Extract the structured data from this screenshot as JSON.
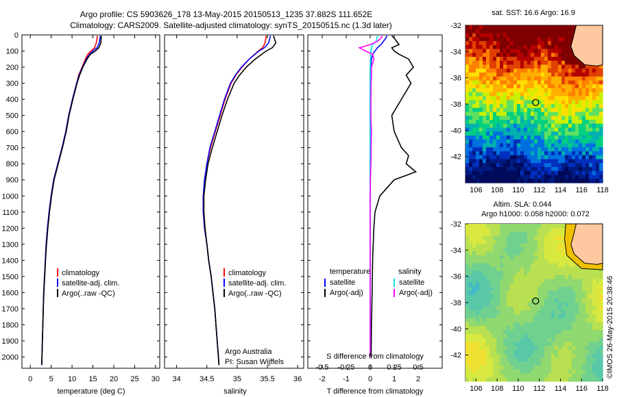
{
  "header": {
    "title_line1": "Argo profile: CS 5903626_178 13-May-2015 20150513_1235 37.882S 111.652E",
    "title_line2": "Climatology: CARS2009. Satellite-adjusted climatology: synTS_20150515.nc (1.3d later)"
  },
  "credits": {
    "group": "Argo Australia",
    "pi": "PI: Susan Wijffels",
    "imos": "©IMOS 26-May-2015 20:38:46"
  },
  "colors": {
    "climatology": "#ff0000",
    "satellite": "#0000ff",
    "argo": "#000000",
    "salinity_satellite": "#00e5e5",
    "salinity_argo": "#ff00ff"
  },
  "chart_data": [
    {
      "id": "temperature",
      "type": "line",
      "xlabel": "temperature (deg C)",
      "ylabel": "",
      "xlim": [
        -2,
        31
      ],
      "ylim": [
        2070,
        0
      ],
      "xticks": [
        0,
        5,
        10,
        15,
        20,
        25,
        30
      ],
      "yticks": [
        0,
        100,
        200,
        300,
        400,
        500,
        600,
        700,
        800,
        900,
        1000,
        1100,
        1200,
        1300,
        1400,
        1500,
        1600,
        1700,
        1800,
        1900,
        2000
      ],
      "legend": [
        "climatology",
        "satellite-adj. clim.",
        "Argo(..raw -QC)"
      ],
      "depth": [
        5,
        50,
        80,
        100,
        120,
        150,
        200,
        250,
        300,
        400,
        500,
        600,
        700,
        800,
        900,
        1000,
        1100,
        1200,
        1300,
        1400,
        1500,
        1600,
        1700,
        1800,
        1900,
        2000,
        2050
      ],
      "series": [
        {
          "name": "climatology",
          "color": "#ff0000",
          "values": [
            16.1,
            15.8,
            15.4,
            14.5,
            13.8,
            13.2,
            12.4,
            11.6,
            11.1,
            10.1,
            9.2,
            8.5,
            7.6,
            6.6,
            5.6,
            5.0,
            4.5,
            4.1,
            3.8,
            3.6,
            3.4,
            3.2,
            3.1,
            3.0,
            2.9,
            2.8,
            2.75
          ]
        },
        {
          "name": "satellite-adj. clim.",
          "color": "#0000ff",
          "values": [
            16.8,
            16.5,
            16.0,
            15.0,
            14.2,
            13.4,
            12.5,
            11.7,
            11.1,
            10.1,
            9.2,
            8.5,
            7.6,
            6.6,
            5.6,
            5.0,
            4.5,
            4.1,
            3.8,
            3.6,
            3.4,
            3.2,
            3.1,
            3.0,
            2.9,
            2.8,
            2.75
          ]
        },
        {
          "name": "Argo(..raw -QC)",
          "color": "#000000",
          "values": [
            17.0,
            16.9,
            16.4,
            15.6,
            14.4,
            13.6,
            12.6,
            11.8,
            11.2,
            10.2,
            9.3,
            8.6,
            7.7,
            6.7,
            5.7,
            5.1,
            4.6,
            4.2,
            3.9,
            3.65,
            3.45,
            3.25,
            3.1,
            3.0,
            2.9,
            2.8,
            2.75
          ]
        }
      ]
    },
    {
      "id": "salinity",
      "type": "line",
      "xlabel": "salinity",
      "ylabel": "",
      "xlim": [
        33.8,
        36.1
      ],
      "ylim": [
        2070,
        0
      ],
      "xticks": [
        34,
        34.5,
        35,
        35.5,
        36
      ],
      "legend": [
        "climatology",
        "satellite-adj. clim.",
        "Argo(..raw -QC)"
      ],
      "depth": [
        5,
        50,
        80,
        100,
        150,
        200,
        250,
        300,
        400,
        500,
        600,
        700,
        800,
        900,
        1000,
        1100,
        1200,
        1300,
        1400,
        1500,
        1600,
        1700,
        1800,
        1900,
        2000,
        2050
      ],
      "series": [
        {
          "name": "climatology",
          "color": "#ff0000",
          "values": [
            35.48,
            35.46,
            35.42,
            35.35,
            35.2,
            35.08,
            34.98,
            34.9,
            34.8,
            34.72,
            34.64,
            34.56,
            34.5,
            34.46,
            34.44,
            34.44,
            34.46,
            34.5,
            34.53,
            34.57,
            34.6,
            34.63,
            34.65,
            34.67,
            34.69,
            34.7
          ]
        },
        {
          "name": "satellite-adj. clim.",
          "color": "#0000ff",
          "values": [
            35.55,
            35.52,
            35.45,
            35.36,
            35.2,
            35.07,
            34.97,
            34.89,
            34.79,
            34.71,
            34.63,
            34.55,
            34.5,
            34.46,
            34.44,
            34.44,
            34.46,
            34.5,
            34.53,
            34.57,
            34.6,
            34.63,
            34.65,
            34.67,
            34.69,
            34.7
          ]
        },
        {
          "name": "Argo(..raw -QC)",
          "color": "#000000",
          "values": [
            35.6,
            35.64,
            35.58,
            35.48,
            35.3,
            35.15,
            35.04,
            34.95,
            34.84,
            34.75,
            34.67,
            34.59,
            34.52,
            34.48,
            34.45,
            34.45,
            34.47,
            34.5,
            34.53,
            34.57,
            34.6,
            34.63,
            34.65,
            34.67,
            34.69,
            34.7
          ]
        }
      ]
    },
    {
      "id": "difference",
      "type": "line",
      "xlabel": "T difference from climatology",
      "xlabel2": "S difference from climatology",
      "xlim": [
        -2.6,
        3.0
      ],
      "ylim": [
        2070,
        0
      ],
      "xticks": [
        -2,
        -1,
        0,
        1,
        2
      ],
      "xticks2": [
        "-0.5",
        "-0.25",
        "0",
        "0.25",
        "0.5"
      ],
      "legend_left_title": "temperature",
      "legend_right_title": "salinity",
      "legend": [
        "satellite",
        "Argo(-adj)",
        "satellite",
        "Argo(-adj)"
      ],
      "depth": [
        5,
        20,
        40,
        60,
        80,
        100,
        120,
        150,
        200,
        250,
        300,
        400,
        500,
        600,
        700,
        750,
        800,
        850,
        900,
        1000,
        1100,
        1200,
        1400,
        1600,
        1800,
        2000
      ],
      "series": [
        {
          "name": "temperature satellite",
          "color": "#0000ff",
          "values": [
            0.7,
            0.65,
            0.55,
            0.45,
            0.3,
            0.2,
            0.1,
            0.05,
            0.02,
            0.0,
            0.0,
            0.0,
            0.0,
            0.0,
            0.0,
            0.0,
            0.0,
            0.0,
            0.0,
            0.0,
            0.0,
            0.0,
            0.0,
            0.0,
            0.0,
            0.0
          ]
        },
        {
          "name": "temperature Argo(-adj)",
          "color": "#000000",
          "values": [
            0.9,
            1.0,
            1.1,
            1.2,
            0.9,
            1.0,
            1.2,
            1.6,
            1.8,
            1.5,
            1.7,
            1.3,
            0.9,
            1.0,
            1.3,
            1.6,
            1.5,
            1.9,
            1.0,
            0.4,
            0.2,
            0.15,
            0.1,
            0.08,
            0.05,
            0.04
          ]
        },
        {
          "name": "salinity satellite",
          "color": "#00e5e5",
          "values": [
            0.3,
            0.28,
            0.25,
            0.1,
            0.05,
            0.03,
            0.01,
            0.01,
            0.0,
            0.0,
            0.0,
            0.0,
            0.0,
            0.0,
            0.0,
            0.0,
            0.0,
            0.0,
            0.0,
            0.0,
            0.0,
            0.0,
            0.0,
            0.0,
            0.0,
            0.0
          ]
        },
        {
          "name": "salinity Argo(-adj)",
          "color": "#ff00ff",
          "values": [
            0.5,
            0.45,
            0.3,
            0.0,
            -0.45,
            -0.2,
            0.1,
            0.15,
            0.05,
            0.05,
            0.04,
            0.03,
            0.03,
            0.05,
            0.04,
            0.04,
            0.03,
            0.02,
            0.01,
            0.0,
            0.0,
            0.0,
            0.0,
            0.0,
            0.0,
            0.0
          ]
        }
      ]
    },
    {
      "id": "sst_map",
      "type": "heatmap",
      "title": "sat. SST: 16.6  Argo: 16.9",
      "xlim": [
        105,
        118
      ],
      "ylim": [
        -44,
        -32
      ],
      "xticks": [
        106,
        108,
        110,
        112,
        114,
        116,
        118
      ],
      "yticks": [
        -32,
        -34,
        -36,
        -38,
        -40,
        -42
      ],
      "marker": {
        "lon": 111.652,
        "lat": -37.882
      }
    },
    {
      "id": "sla_map",
      "type": "heatmap",
      "title": "Altim. SLA: 0.044",
      "subtitle": "Argo h1000: 0.058 h2000: 0.072",
      "xlim": [
        105,
        118
      ],
      "ylim": [
        -44,
        -32
      ],
      "xticks": [
        106,
        108,
        110,
        112,
        114,
        116,
        118
      ],
      "yticks": [
        -32,
        -34,
        -36,
        -38,
        -40,
        -42
      ],
      "marker": {
        "lon": 111.652,
        "lat": -37.882
      }
    }
  ]
}
